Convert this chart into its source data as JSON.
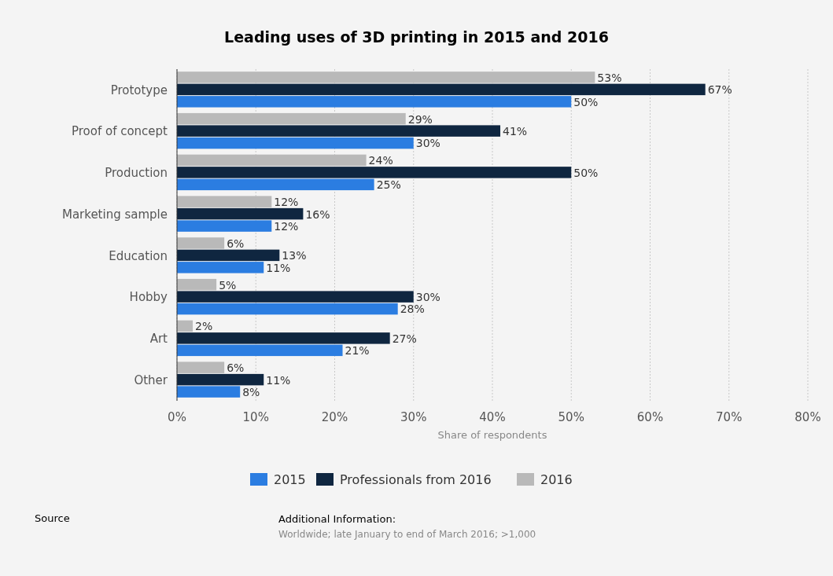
{
  "chart_data": {
    "type": "bar",
    "orientation": "horizontal",
    "title": "Leading uses of 3D printing in 2015 and 2016",
    "xlabel": "Share of respondents",
    "categories": [
      "Prototype",
      "Proof of concept",
      "Production",
      "Marketing sample",
      "Education",
      "Hobby",
      "Art",
      "Other"
    ],
    "series": [
      {
        "name": "2015",
        "color": "#2b7de1",
        "values": [
          50,
          30,
          25,
          12,
          11,
          28,
          21,
          8
        ],
        "value_labels": [
          "50%",
          "30%",
          "25%",
          "12%",
          "11%",
          "28%",
          "21%",
          "8%"
        ]
      },
      {
        "name": "Professionals from 2016",
        "color": "#0f2640",
        "values": [
          67,
          41,
          50,
          16,
          13,
          30,
          27,
          11
        ],
        "value_labels": [
          "67%",
          "41%",
          "50%",
          "16%",
          "13%",
          "30%",
          "27%",
          "11%"
        ]
      },
      {
        "name": "2016",
        "color": "#b9b9b9",
        "values": [
          53,
          29,
          24,
          12,
          6,
          5,
          2,
          6
        ],
        "value_labels": [
          "53%",
          "29%",
          "24%",
          "12%",
          "6%",
          "5%",
          "2%",
          "6%"
        ]
      }
    ],
    "xlim": [
      0,
      80
    ],
    "xticks": [
      {
        "value": 0,
        "label": "0%"
      },
      {
        "value": 10,
        "label": "10%"
      },
      {
        "value": 20,
        "label": "20%"
      },
      {
        "value": 30,
        "label": "30%"
      },
      {
        "value": 40,
        "label": "40%"
      },
      {
        "value": 50,
        "label": "50%"
      },
      {
        "value": 60,
        "label": "60%"
      },
      {
        "value": 70,
        "label": "70%"
      },
      {
        "value": 80,
        "label": "80%"
      }
    ],
    "grid": "x",
    "legend": "bottom",
    "annotations": [
      "Source",
      "Additional Information:",
      "Worldwide; late January to end of March 2016; >1,000"
    ]
  }
}
